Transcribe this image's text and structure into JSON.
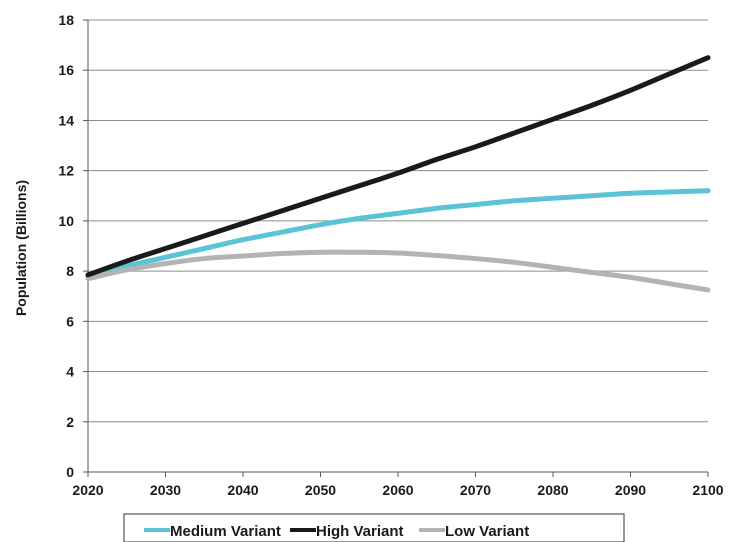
{
  "chart_data": {
    "type": "line",
    "title": "",
    "xlabel": "",
    "ylabel": "Population (Billions)",
    "xlim": [
      2020,
      2100
    ],
    "ylim": [
      0,
      18
    ],
    "x_ticks": [
      "2020",
      "2030",
      "2040",
      "2050",
      "2060",
      "2070",
      "2080",
      "2090",
      "2100"
    ],
    "y_ticks": [
      "0",
      "2",
      "4",
      "6",
      "8",
      "10",
      "12",
      "14",
      "16",
      "18"
    ],
    "grid": "horizontal",
    "legend_position": "bottom",
    "x": [
      2020,
      2025,
      2030,
      2035,
      2040,
      2045,
      2050,
      2055,
      2060,
      2065,
      2070,
      2075,
      2080,
      2085,
      2090,
      2095,
      2100
    ],
    "series": [
      {
        "name": "Medium Variant",
        "color": "#5bc3d6",
        "values": [
          7.8,
          8.2,
          8.55,
          8.9,
          9.25,
          9.55,
          9.85,
          10.1,
          10.3,
          10.5,
          10.65,
          10.8,
          10.9,
          11.0,
          11.1,
          11.15,
          11.2
        ]
      },
      {
        "name": "High Variant",
        "color": "#1a1a1a",
        "values": [
          7.85,
          8.4,
          8.9,
          9.4,
          9.9,
          10.4,
          10.9,
          11.4,
          11.9,
          12.45,
          12.95,
          13.5,
          14.05,
          14.6,
          15.2,
          15.85,
          16.5
        ]
      },
      {
        "name": "Low Variant",
        "color": "#b3b3b3",
        "values": [
          7.7,
          8.05,
          8.3,
          8.5,
          8.6,
          8.7,
          8.75,
          8.75,
          8.72,
          8.62,
          8.5,
          8.35,
          8.15,
          7.95,
          7.75,
          7.5,
          7.25
        ]
      }
    ]
  }
}
